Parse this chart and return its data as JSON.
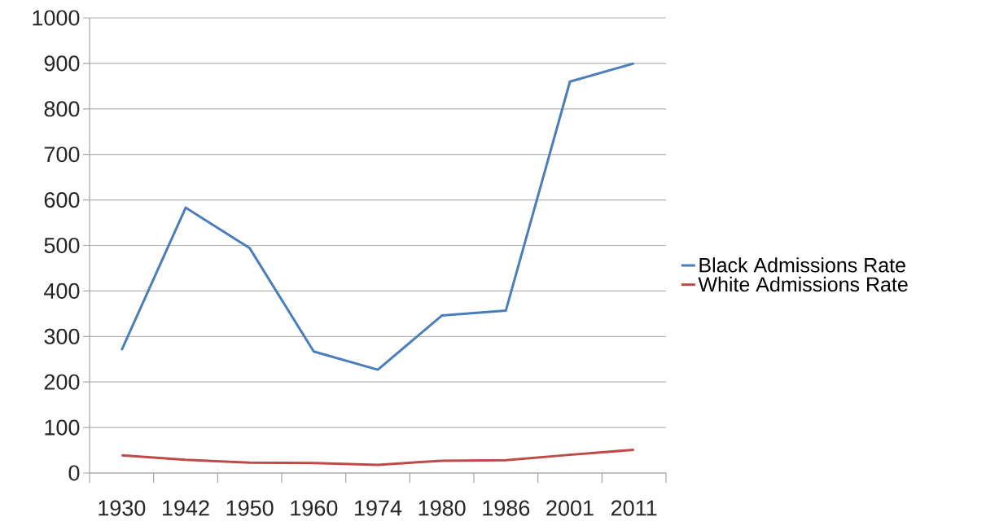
{
  "chart_data": {
    "type": "line",
    "categories": [
      "1930",
      "1942",
      "1950",
      "1960",
      "1974",
      "1980",
      "1986",
      "2001",
      "2011"
    ],
    "series": [
      {
        "name": "Black Admissions Rate",
        "color": "#4a7ebb",
        "values": [
          270,
          583,
          494,
          267,
          227,
          346,
          357,
          860,
          900
        ]
      },
      {
        "name": "White Admissions Rate",
        "color": "#be4b48",
        "values": [
          39,
          29,
          23,
          22,
          18,
          27,
          28,
          40,
          51
        ]
      }
    ],
    "ylim": [
      0,
      1000
    ],
    "yticks": [
      0,
      100,
      200,
      300,
      400,
      500,
      600,
      700,
      800,
      900,
      1000
    ],
    "grid": "y",
    "legend": "right",
    "marker": "none",
    "line_style": "solid"
  }
}
